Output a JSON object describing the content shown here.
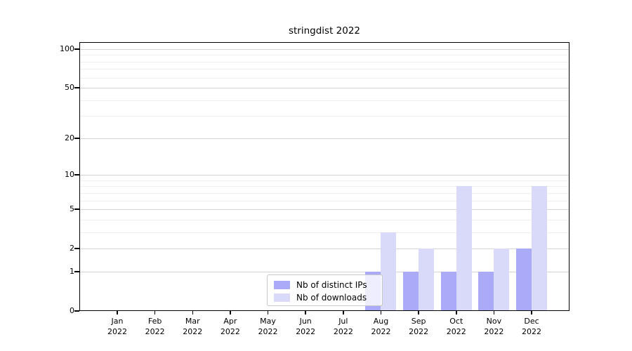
{
  "chart_data": {
    "type": "bar",
    "title": "stringdist 2022",
    "categories": [
      {
        "month": "Jan",
        "year": "2022"
      },
      {
        "month": "Feb",
        "year": "2022"
      },
      {
        "month": "Mar",
        "year": "2022"
      },
      {
        "month": "Apr",
        "year": "2022"
      },
      {
        "month": "May",
        "year": "2022"
      },
      {
        "month": "Jun",
        "year": "2022"
      },
      {
        "month": "Jul",
        "year": "2022"
      },
      {
        "month": "Aug",
        "year": "2022"
      },
      {
        "month": "Sep",
        "year": "2022"
      },
      {
        "month": "Oct",
        "year": "2022"
      },
      {
        "month": "Nov",
        "year": "2022"
      },
      {
        "month": "Dec",
        "year": "2022"
      }
    ],
    "series": [
      {
        "name": "Nb of distinct IPs",
        "color": "#aaaaf8",
        "values": [
          0,
          0,
          0,
          0,
          0,
          0,
          0,
          1,
          1,
          1,
          1,
          2
        ]
      },
      {
        "name": "Nb of downloads",
        "color": "#d9d9f9",
        "values": [
          0,
          0,
          0,
          0,
          0,
          0,
          0,
          3,
          2,
          8,
          2,
          8
        ]
      }
    ],
    "yscale": "log1p",
    "ylim": [
      0,
      113.3
    ],
    "yticks": [
      0,
      1,
      2,
      5,
      10,
      20,
      50,
      100
    ],
    "yticks_minor": [
      3,
      4,
      6,
      7,
      8,
      9,
      30,
      40,
      60,
      70,
      80,
      90
    ],
    "grid": "horizontal",
    "legend": {
      "position": "lower-center-inside",
      "framealpha": 0.8
    }
  },
  "colors": {
    "bar_distinct_ips": "#aaaaf8",
    "bar_downloads": "#d9d9f9",
    "grid_major": "#d3d3d3",
    "grid_minor": "#eeeeee",
    "frame": "#000000",
    "legend_border": "#c8c8c8"
  }
}
